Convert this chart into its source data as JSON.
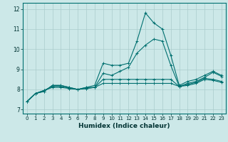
{
  "xlabel": "Humidex (Indice chaleur)",
  "background_color": "#cce8e8",
  "grid_color": "#aacccc",
  "line_color": "#007070",
  "xlim": [
    -0.5,
    23.5
  ],
  "ylim": [
    6.8,
    12.3
  ],
  "yticks": [
    7,
    8,
    9,
    10,
    11,
    12
  ],
  "xticks": [
    0,
    1,
    2,
    3,
    4,
    5,
    6,
    7,
    8,
    9,
    10,
    11,
    12,
    13,
    14,
    15,
    16,
    17,
    18,
    19,
    20,
    21,
    22,
    23
  ],
  "series": [
    [
      7.4,
      7.8,
      7.9,
      8.2,
      8.2,
      8.1,
      8.0,
      8.1,
      8.2,
      9.3,
      9.2,
      9.2,
      9.3,
      10.4,
      11.8,
      11.3,
      11.0,
      9.7,
      8.2,
      8.4,
      8.5,
      8.7,
      8.9,
      8.7
    ],
    [
      7.4,
      7.8,
      7.9,
      8.2,
      8.2,
      8.1,
      8.0,
      8.1,
      8.1,
      8.8,
      8.7,
      8.9,
      9.1,
      9.8,
      10.2,
      10.5,
      10.4,
      9.2,
      8.15,
      8.3,
      8.4,
      8.6,
      8.85,
      8.65
    ],
    [
      7.4,
      7.8,
      7.95,
      8.15,
      8.15,
      8.05,
      8.0,
      8.05,
      8.1,
      8.5,
      8.5,
      8.5,
      8.5,
      8.5,
      8.5,
      8.5,
      8.5,
      8.5,
      8.15,
      8.25,
      8.35,
      8.55,
      8.5,
      8.4
    ],
    [
      7.4,
      7.8,
      7.95,
      8.1,
      8.1,
      8.05,
      8.0,
      8.05,
      8.1,
      8.3,
      8.3,
      8.3,
      8.3,
      8.3,
      8.3,
      8.3,
      8.3,
      8.3,
      8.15,
      8.2,
      8.3,
      8.5,
      8.45,
      8.35
    ]
  ]
}
